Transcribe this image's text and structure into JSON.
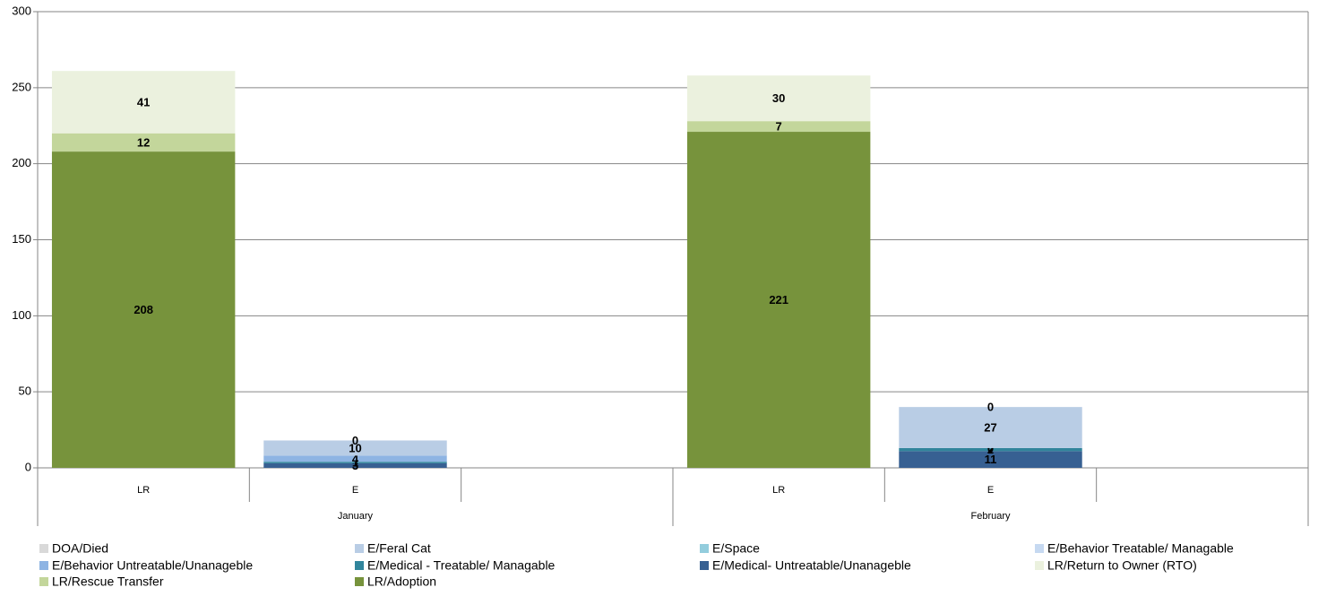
{
  "chart_data": {
    "type": "stacked_bar",
    "categories": [
      "LR",
      "E",
      null,
      "LR",
      "E",
      null
    ],
    "groups": [
      "January",
      "February"
    ],
    "ylim": [
      0,
      300
    ],
    "yticks": [
      0,
      50,
      100,
      150,
      200,
      250,
      300
    ],
    "grid": true,
    "series": [
      {
        "name": "DOA/Died",
        "color": "#d9d9d9",
        "values": [
          null,
          0,
          null,
          null,
          0,
          null
        ]
      },
      {
        "name": "E/Feral Cat",
        "color": "#b9cde5",
        "values": [
          null,
          10,
          null,
          null,
          27,
          null
        ]
      },
      {
        "name": "E/Space",
        "color": "#93cddd",
        "values": [
          null,
          null,
          null,
          null,
          0,
          null
        ]
      },
      {
        "name": "E/Behavior Treatable/ Managable",
        "color": "#c6d9f1",
        "values": [
          null,
          null,
          null,
          null,
          null,
          null
        ]
      },
      {
        "name": "E/Behavior Untreatable/Unanageble",
        "color": "#8eb4e3",
        "values": [
          null,
          4,
          null,
          null,
          0,
          null
        ]
      },
      {
        "name": "E/Medical - Treatable/ Managable",
        "color": "#31859c",
        "values": [
          null,
          1,
          null,
          null,
          2,
          null
        ]
      },
      {
        "name": "E/Medical- Untreatable/Unanageble",
        "color": "#376092",
        "values": [
          null,
          3,
          null,
          null,
          11,
          null
        ]
      },
      {
        "name": "LR/Return to Owner (RTO)",
        "color": "#ebf1de",
        "values": [
          41,
          null,
          null,
          30,
          null,
          null
        ]
      },
      {
        "name": "LR/Rescue Transfer",
        "color": "#c3d69b",
        "values": [
          12,
          null,
          null,
          7,
          null,
          null
        ]
      },
      {
        "name": "LR/Adoption",
        "color": "#77933c",
        "values": [
          208,
          null,
          null,
          221,
          null,
          null
        ]
      }
    ]
  }
}
